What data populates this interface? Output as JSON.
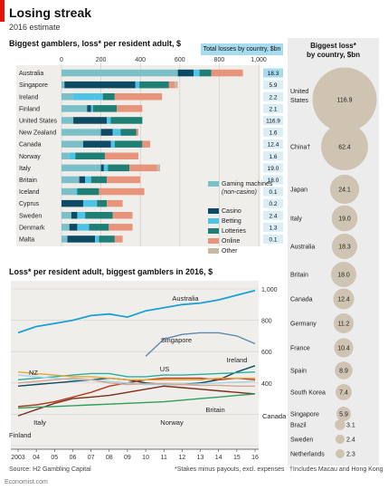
{
  "header": {
    "title": "Losing streak",
    "subtitle": "2016 estimate",
    "panel1_title": "Biggest gamblers, loss* per resident adult, $",
    "totals_header": "Total losses by country, $bn",
    "biggest_header_line1": "Biggest loss*",
    "biggest_header_line2": "by country, $bn",
    "panel2_title": "Loss* per resident adult, biggest gamblers in 2016, $"
  },
  "footer": {
    "source": "Source: H2 Gambling Capital",
    "footnote1": "*Stakes minus payouts, excl. expenses",
    "footnote2": "†Includes Macau and Hong Kong",
    "brand": "Economist.com"
  },
  "colors": {
    "gaming": "#7bbfc8",
    "casino": "#0d4a63",
    "betting": "#4ec3e8",
    "lotteries": "#1f7f74",
    "online": "#e8947a",
    "other": "#c8b8a6",
    "circle": "#cfc3b1",
    "line": "#1aa1d6",
    "panelbg": "#f0eeea"
  },
  "chart_data": [
    {
      "type": "bar",
      "stacked": true,
      "title": "Biggest gamblers, loss* per resident adult, $",
      "xlim": [
        0,
        1000
      ],
      "xticks": [
        0,
        200,
        400,
        600,
        800,
        1000
      ],
      "xtick_labels": [
        "0",
        "200",
        "400",
        "600",
        "800",
        "1,000"
      ],
      "categories": [
        "Australia",
        "Singapore",
        "Ireland",
        "Finland",
        "United States",
        "New Zealand",
        "Canada",
        "Norway",
        "Italy",
        "Britain",
        "Iceland",
        "Cyprus",
        "Sweden",
        "Denmark",
        "Malta"
      ],
      "series": [
        {
          "name": "Gaming machines (non-casino)",
          "color_key": "gaming",
          "values": [
            590,
            15,
            60,
            130,
            60,
            200,
            110,
            40,
            200,
            90,
            70,
            0,
            50,
            40,
            30
          ]
        },
        {
          "name": "Casino",
          "color_key": "casino",
          "values": [
            80,
            360,
            0,
            20,
            170,
            60,
            140,
            0,
            15,
            30,
            0,
            110,
            30,
            40,
            140
          ]
        },
        {
          "name": "Betting",
          "color_key": "betting",
          "values": [
            30,
            20,
            150,
            10,
            20,
            40,
            20,
            30,
            20,
            30,
            10,
            70,
            40,
            60,
            20
          ]
        },
        {
          "name": "Lotteries",
          "color_key": "lotteries",
          "values": [
            60,
            150,
            60,
            120,
            160,
            80,
            140,
            150,
            110,
            80,
            110,
            50,
            140,
            100,
            80
          ]
        },
        {
          "name": "Online",
          "color_key": "online",
          "values": [
            160,
            30,
            240,
            130,
            0,
            10,
            40,
            170,
            140,
            170,
            230,
            80,
            100,
            120,
            40
          ]
        },
        {
          "name": "Other",
          "color_key": "other",
          "values": [
            0,
            15,
            0,
            0,
            0,
            0,
            0,
            0,
            15,
            0,
            0,
            0,
            0,
            0,
            0
          ]
        }
      ],
      "totals_bn": [
        "18.3",
        "5.9",
        "2.2",
        "2.1",
        "116.9",
        "1.6",
        "12.4",
        "1.6",
        "19.0",
        "18.0",
        "0.1",
        "0.2",
        "2.4",
        "1.3",
        "0.1"
      ],
      "legend": [
        "Gaming machines",
        "(non-casino)",
        "Casino",
        "Betting",
        "Lotteries",
        "Online",
        "Other"
      ]
    },
    {
      "type": "line",
      "title": "Loss* per resident adult, biggest gamblers in 2016, $",
      "x": [
        2003,
        2004,
        2005,
        2006,
        2007,
        2008,
        2009,
        2010,
        2011,
        2012,
        2013,
        2014,
        2015,
        2016
      ],
      "xtick_labels": [
        "2003",
        "04",
        "05",
        "06",
        "07",
        "08",
        "09",
        "10",
        "11",
        "12",
        "13",
        "14",
        "15",
        "16"
      ],
      "ylim": [
        0,
        1000
      ],
      "yticks": [
        400,
        600,
        800,
        1000
      ],
      "ytick_labels": [
        "400",
        "600",
        "800",
        "1,000"
      ],
      "series": [
        {
          "name": "Australia",
          "values": [
            720,
            760,
            780,
            800,
            830,
            840,
            820,
            860,
            880,
            900,
            910,
            930,
            960,
            990
          ]
        },
        {
          "name": "Singapore",
          "values": [
            0,
            0,
            0,
            0,
            0,
            0,
            0,
            570,
            680,
            710,
            720,
            720,
            700,
            650
          ]
        },
        {
          "name": "Ireland",
          "values": [
            380,
            390,
            400,
            410,
            420,
            430,
            420,
            400,
            390,
            390,
            400,
            420,
            470,
            510
          ]
        },
        {
          "name": "Finland",
          "values": [
            250,
            260,
            280,
            310,
            340,
            380,
            400,
            420,
            430,
            430,
            430,
            420,
            430,
            420
          ]
        },
        {
          "name": "United States",
          "values": [
            420,
            430,
            440,
            450,
            460,
            460,
            440,
            440,
            450,
            450,
            455,
            460,
            465,
            470
          ]
        },
        {
          "name": "New Zealand",
          "values": [
            470,
            460,
            450,
            440,
            440,
            430,
            420,
            420,
            420,
            420,
            420,
            430,
            430,
            430
          ]
        },
        {
          "name": "Canada",
          "values": [
            450,
            440,
            430,
            420,
            420,
            410,
            400,
            390,
            390,
            390,
            395,
            400,
            405,
            410
          ]
        },
        {
          "name": "Norway",
          "values": [
            400,
            410,
            420,
            430,
            420,
            400,
            390,
            395,
            395,
            390,
            385,
            385,
            380,
            380
          ]
        },
        {
          "name": "Italy",
          "values": [
            190,
            230,
            270,
            300,
            310,
            320,
            340,
            360,
            380,
            370,
            360,
            350,
            340,
            330
          ]
        },
        {
          "name": "Britain",
          "values": [
            240,
            245,
            250,
            255,
            260,
            265,
            270,
            275,
            280,
            290,
            300,
            310,
            320,
            330
          ]
        }
      ],
      "labels": [
        "Australia",
        "Singapore",
        "Ireland",
        "US",
        "NZ",
        "Canada",
        "Italy",
        "Norway",
        "Britain",
        "Finland"
      ]
    },
    {
      "type": "scatter",
      "title": "Biggest loss* by country, $bn",
      "categories": [
        "United States",
        "China†",
        "Japan",
        "Italy",
        "Australia",
        "Britain",
        "Canada",
        "Germany",
        "France",
        "Spain",
        "South Korea",
        "Singapore",
        "Brazil",
        "Sweden",
        "Netherlands"
      ],
      "values": [
        116.9,
        62.4,
        24.1,
        19.0,
        18.3,
        18.0,
        12.4,
        11.2,
        10.4,
        8.9,
        7.4,
        5.9,
        3.1,
        2.4,
        2.3
      ],
      "value_labels": [
        "116.9",
        "62.4",
        "24.1",
        "19.0",
        "18.3",
        "18.0",
        "12.4",
        "11.2",
        "10.4",
        "8.9",
        "7.4",
        "5.9",
        "3.1",
        "2.4",
        "2.3"
      ],
      "names_display": [
        "United",
        "States"
      ]
    }
  ]
}
